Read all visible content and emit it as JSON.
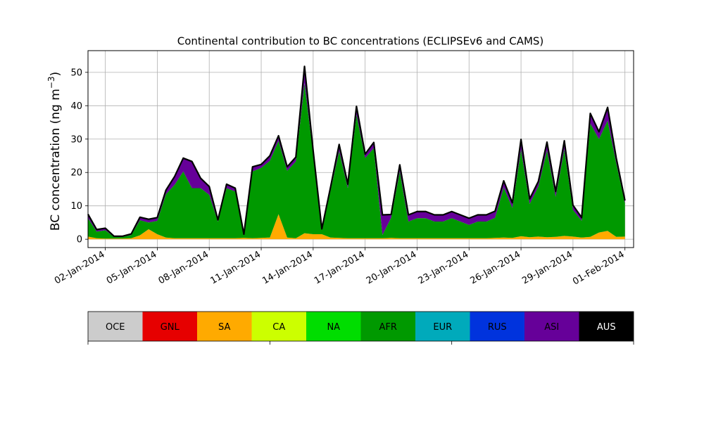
{
  "chart_data": {
    "type": "area",
    "stacked": true,
    "title": "Continental contribution to BC concentrations (ECLIPSEv6 and CAMS)",
    "xlabel": "",
    "ylabel": "BC concentration (ng m",
    "ylabel_superscript": "−3",
    "ylabel_suffix": ")",
    "xlim": [
      "2014-01-01T00:00",
      "2014-02-01T12:00"
    ],
    "ylim": [
      -2.5,
      56.5
    ],
    "yticks": [
      0,
      10,
      20,
      30,
      40,
      50
    ],
    "xtick_labels": [
      "02-Jan-2014",
      "05-Jan-2014",
      "08-Jan-2014",
      "11-Jan-2014",
      "14-Jan-2014",
      "17-Jan-2014",
      "20-Jan-2014",
      "23-Jan-2014",
      "26-Jan-2014",
      "29-Jan-2014",
      "01-Feb-2014"
    ],
    "xtick_dates": [
      "2014-01-02",
      "2014-01-05",
      "2014-01-08",
      "2014-01-11",
      "2014-01-14",
      "2014-01-17",
      "2014-01-20",
      "2014-01-23",
      "2014-01-26",
      "2014-01-29",
      "2014-02-01"
    ],
    "grid": true,
    "x": [
      "2014-01-01T00:00",
      "2014-01-01T12:00",
      "2014-01-02T00:00",
      "2014-01-02T12:00",
      "2014-01-03T00:00",
      "2014-01-03T12:00",
      "2014-01-04T00:00",
      "2014-01-04T12:00",
      "2014-01-05T00:00",
      "2014-01-05T12:00",
      "2014-01-06T00:00",
      "2014-01-06T12:00",
      "2014-01-07T00:00",
      "2014-01-07T12:00",
      "2014-01-08T00:00",
      "2014-01-08T12:00",
      "2014-01-09T00:00",
      "2014-01-09T12:00",
      "2014-01-10T00:00",
      "2014-01-10T12:00",
      "2014-01-11T00:00",
      "2014-01-11T12:00",
      "2014-01-12T00:00",
      "2014-01-12T12:00",
      "2014-01-13T00:00",
      "2014-01-13T12:00",
      "2014-01-14T00:00",
      "2014-01-14T12:00",
      "2014-01-15T00:00",
      "2014-01-15T12:00",
      "2014-01-16T00:00",
      "2014-01-16T12:00",
      "2014-01-17T00:00",
      "2014-01-17T12:00",
      "2014-01-18T00:00",
      "2014-01-18T12:00",
      "2014-01-19T00:00",
      "2014-01-19T12:00",
      "2014-01-20T00:00",
      "2014-01-20T12:00",
      "2014-01-21T00:00",
      "2014-01-21T12:00",
      "2014-01-22T00:00",
      "2014-01-22T12:00",
      "2014-01-23T00:00",
      "2014-01-23T12:00",
      "2014-01-24T00:00",
      "2014-01-24T12:00",
      "2014-01-25T00:00",
      "2014-01-25T12:00",
      "2014-01-26T00:00",
      "2014-01-26T12:00",
      "2014-01-27T00:00",
      "2014-01-27T12:00",
      "2014-01-28T00:00",
      "2014-01-28T12:00",
      "2014-01-29T00:00",
      "2014-01-29T12:00",
      "2014-01-30T00:00",
      "2014-01-30T12:00",
      "2014-01-31T00:00",
      "2014-01-31T12:00",
      "2014-02-01T00:00"
    ],
    "series": [
      {
        "name": "OCE",
        "color": "#cccccc",
        "values": [
          0,
          0,
          0,
          0,
          0,
          0,
          0,
          0,
          0,
          0,
          0,
          0,
          0,
          0,
          0,
          0,
          0,
          0,
          0,
          0,
          0,
          0,
          0,
          0,
          0,
          0,
          0,
          0,
          0,
          0,
          0,
          0,
          0,
          0,
          0,
          0,
          0,
          0,
          0,
          0,
          0,
          0,
          0,
          0,
          0,
          0,
          0,
          0,
          0,
          0,
          0,
          0,
          0,
          0,
          0,
          0,
          0,
          0,
          0,
          0,
          0,
          0,
          0
        ]
      },
      {
        "name": "GNL",
        "color": "#e60000",
        "values": [
          0,
          0,
          0,
          0,
          0,
          0,
          0,
          0,
          0,
          0,
          0,
          0,
          0,
          0,
          0,
          0,
          0,
          0,
          0,
          0,
          0,
          0,
          0,
          0,
          0,
          0,
          0,
          0,
          0,
          0,
          0,
          0,
          0,
          0,
          0,
          0,
          0,
          0,
          0,
          0,
          0,
          0,
          0,
          0,
          0,
          0,
          0,
          0,
          0,
          0,
          0,
          0,
          0,
          0,
          0,
          0,
          0,
          0,
          0,
          0,
          0,
          0,
          0
        ]
      },
      {
        "name": "SA",
        "color": "#ffaa00",
        "values": [
          0.8,
          0.3,
          0.2,
          0.2,
          0.2,
          0.3,
          1.2,
          3,
          1.5,
          0.5,
          0.3,
          0.3,
          0.3,
          0.3,
          0.3,
          0.3,
          0.3,
          0.3,
          0.4,
          0.3,
          0.4,
          0.5,
          7.5,
          0.5,
          0.3,
          1.8,
          1.5,
          1.5,
          0.5,
          0.4,
          0.3,
          0.3,
          0.3,
          0.3,
          0.3,
          0.4,
          0.3,
          0.3,
          0.3,
          0.3,
          0.3,
          0.3,
          0.3,
          0.3,
          0.3,
          0.3,
          0.3,
          0.4,
          0.5,
          0.4,
          0.9,
          0.6,
          0.8,
          0.6,
          0.7,
          1,
          0.8,
          0.5,
          0.7,
          2,
          2.5,
          0.7,
          0.8
        ]
      },
      {
        "name": "CA",
        "color": "#ccff00",
        "values": [
          0,
          0,
          0,
          0,
          0,
          0,
          0,
          0,
          0,
          0,
          0,
          0,
          0,
          0,
          0,
          0,
          0,
          0,
          0,
          0,
          0,
          0,
          0,
          0,
          0,
          0,
          0,
          0,
          0,
          0,
          0,
          0,
          0,
          0,
          0,
          0,
          0,
          0,
          0,
          0,
          0,
          0,
          0,
          0,
          0,
          0,
          0,
          0,
          0,
          0,
          0,
          0,
          0,
          0,
          0,
          0,
          0,
          0,
          0,
          0,
          0,
          0,
          0
        ]
      },
      {
        "name": "NA",
        "color": "#00dd00",
        "values": [
          0,
          0,
          0,
          0,
          0,
          0,
          0,
          0,
          0,
          0,
          0,
          0,
          0,
          0,
          0,
          0,
          0,
          0,
          0,
          0,
          0,
          0,
          0,
          0,
          0,
          0,
          0,
          0,
          0,
          0,
          0,
          0,
          0,
          0,
          0,
          0,
          0,
          0,
          0,
          0,
          0,
          0,
          0,
          0,
          0,
          0,
          0,
          0,
          0,
          0,
          0,
          0,
          0,
          0,
          0,
          0,
          0,
          0,
          0,
          0,
          0,
          0,
          0
        ]
      },
      {
        "name": "AFR",
        "color": "#009900",
        "values": [
          5.5,
          2,
          2.5,
          0.5,
          0.5,
          1,
          4.5,
          2,
          4,
          13,
          16,
          20,
          15,
          15,
          13,
          5,
          15,
          14,
          0.8,
          20,
          21,
          23,
          22,
          20,
          23,
          45,
          24,
          1.4,
          14,
          26,
          15,
          37,
          24,
          27,
          1,
          6,
          20,
          5,
          6,
          6,
          5,
          5,
          6,
          5,
          4,
          5,
          5,
          6,
          15,
          9,
          26,
          10,
          15,
          26,
          12,
          26,
          8,
          5,
          34,
          28,
          33,
          22,
          10
        ]
      },
      {
        "name": "EUR",
        "color": "#00aabb",
        "values": [
          0,
          0,
          0,
          0,
          0,
          0,
          0,
          0,
          0,
          0,
          0,
          0,
          0,
          0,
          0,
          0,
          0,
          0,
          0,
          0,
          0,
          0,
          0,
          0,
          0,
          0,
          0,
          0,
          0,
          0,
          0,
          0,
          0,
          0,
          0,
          0,
          0,
          0,
          0,
          0,
          0,
          0,
          0,
          0,
          0,
          0,
          0,
          0,
          0,
          0,
          0,
          0,
          0,
          0,
          0,
          0,
          0,
          0,
          0,
          0,
          0,
          0,
          0
        ]
      },
      {
        "name": "RUS",
        "color": "#0033dd",
        "values": [
          0,
          0,
          0,
          0,
          0,
          0,
          0,
          0,
          0,
          0,
          0,
          0,
          0,
          0,
          0,
          0,
          0,
          0,
          0,
          0,
          0,
          0,
          0,
          0,
          0,
          0,
          0,
          0,
          0,
          0,
          0,
          0,
          0,
          0,
          0,
          0,
          0,
          0,
          0,
          0,
          0,
          0,
          0,
          0,
          0,
          0,
          0,
          0,
          0,
          0,
          0,
          0,
          0,
          0,
          0,
          0,
          0,
          0,
          0,
          0,
          0,
          0,
          0
        ]
      },
      {
        "name": "ASI",
        "color": "#660099",
        "values": [
          1.2,
          0.6,
          0.6,
          0.2,
          0.2,
          0.3,
          0.9,
          1,
          1,
          1.2,
          2.5,
          4,
          8,
          3,
          2.5,
          0.5,
          1.2,
          1,
          0.3,
          1.4,
          1,
          1.5,
          1.5,
          1.2,
          1.3,
          5,
          1,
          0.2,
          1,
          2,
          1.2,
          2.5,
          1.2,
          1.7,
          6,
          1,
          2,
          2,
          2,
          2,
          2,
          2,
          2,
          2,
          2,
          2,
          2,
          2,
          2,
          1.5,
          3,
          1.5,
          1.5,
          2.5,
          1.6,
          2.5,
          1.4,
          1,
          3,
          2.2,
          4,
          1.6,
          0.8
        ]
      },
      {
        "name": "AUS",
        "color": "#000000",
        "values": [
          0,
          0,
          0,
          0,
          0,
          0,
          0,
          0,
          0,
          0,
          0,
          0,
          0,
          0,
          0,
          0,
          0,
          0,
          0,
          0,
          0,
          0,
          0,
          0,
          0,
          0,
          0,
          0,
          0,
          0,
          0,
          0,
          0,
          0,
          0,
          0,
          0,
          0,
          0,
          0,
          0,
          0,
          0,
          0,
          0,
          0,
          0,
          0,
          0,
          0,
          0,
          0,
          0,
          0,
          0,
          0,
          0,
          0,
          0,
          0,
          0,
          0,
          0
        ]
      }
    ],
    "legend": {
      "placement": "bottom-colorbar",
      "entries": [
        {
          "label": "OCE",
          "color": "#cccccc",
          "text_color": "#000000"
        },
        {
          "label": "GNL",
          "color": "#e60000",
          "text_color": "#000000"
        },
        {
          "label": "SA",
          "color": "#ffaa00",
          "text_color": "#000000"
        },
        {
          "label": "CA",
          "color": "#ccff00",
          "text_color": "#000000"
        },
        {
          "label": "NA",
          "color": "#00dd00",
          "text_color": "#000000"
        },
        {
          "label": "AFR",
          "color": "#009900",
          "text_color": "#000000"
        },
        {
          "label": "EUR",
          "color": "#00aabb",
          "text_color": "#000000"
        },
        {
          "label": "RUS",
          "color": "#0033dd",
          "text_color": "#000000"
        },
        {
          "label": "ASI",
          "color": "#660099",
          "text_color": "#000000"
        },
        {
          "label": "AUS",
          "color": "#000000",
          "text_color": "#ffffff"
        }
      ]
    }
  }
}
